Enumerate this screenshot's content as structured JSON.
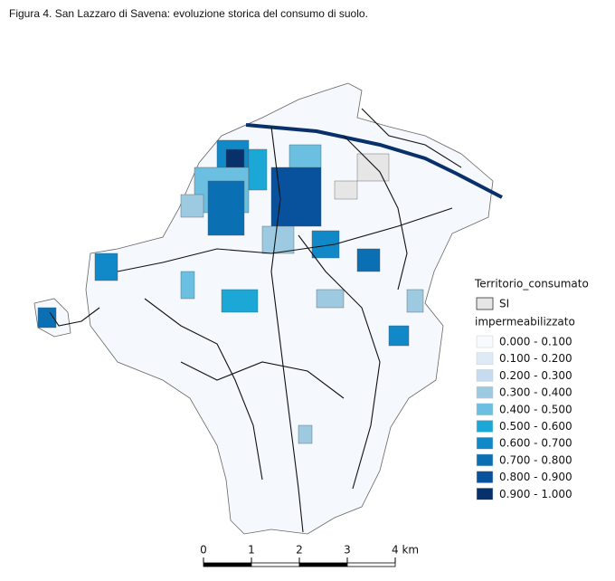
{
  "title": "Figura 4. San Lazzaro di Savena: evoluzione storica del consumo di suolo.",
  "legend": {
    "title": "Territorio_consumato",
    "items": [
      {
        "label": "SI",
        "color": "#e6e6e6"
      }
    ],
    "subtitle": "impermeabilizzato",
    "classes": [
      {
        "label": "0.000 - 0.100",
        "color": "#f7fbff"
      },
      {
        "label": "0.100 - 0.200",
        "color": "#deebf7"
      },
      {
        "label": "0.200 - 0.300",
        "color": "#c6dbef"
      },
      {
        "label": "0.300 - 0.400",
        "color": "#9ecae1"
      },
      {
        "label": "0.400 - 0.500",
        "color": "#6bbfe0"
      },
      {
        "label": "0.500 - 0.600",
        "color": "#1ca8d6"
      },
      {
        "label": "0.600 - 0.700",
        "color": "#1188c8"
      },
      {
        "label": "0.700 - 0.800",
        "color": "#0b6fb3"
      },
      {
        "label": "0.800 - 0.900",
        "color": "#08519c"
      },
      {
        "label": "0.900 - 1.000",
        "color": "#08306b"
      }
    ]
  },
  "scale_bar": {
    "labels": [
      "0",
      "1",
      "2",
      "3",
      "4 km"
    ]
  }
}
